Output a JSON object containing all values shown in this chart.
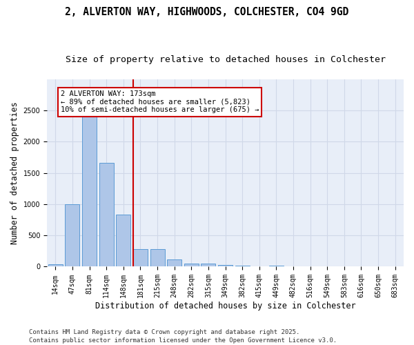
{
  "title_line1": "2, ALVERTON WAY, HIGHWOODS, COLCHESTER, CO4 9GD",
  "title_line2": "Size of property relative to detached houses in Colchester",
  "xlabel": "Distribution of detached houses by size in Colchester",
  "ylabel": "Number of detached properties",
  "bar_labels": [
    "14sqm",
    "47sqm",
    "81sqm",
    "114sqm",
    "148sqm",
    "181sqm",
    "215sqm",
    "248sqm",
    "282sqm",
    "315sqm",
    "349sqm",
    "382sqm",
    "415sqm",
    "449sqm",
    "482sqm",
    "516sqm",
    "549sqm",
    "583sqm",
    "616sqm",
    "650sqm",
    "683sqm"
  ],
  "bar_values": [
    40,
    1000,
    2480,
    1660,
    830,
    280,
    280,
    120,
    50,
    50,
    30,
    20,
    0,
    20,
    0,
    0,
    0,
    0,
    0,
    0,
    0
  ],
  "bar_color": "#aec6e8",
  "bar_edge_color": "#5b9bd5",
  "vline_color": "#cc0000",
  "annotation_text": "2 ALVERTON WAY: 173sqm\n← 89% of detached houses are smaller (5,823)\n10% of semi-detached houses are larger (675) →",
  "annotation_box_color": "#ffffff",
  "annotation_box_edge": "#cc0000",
  "ylim": [
    0,
    3000
  ],
  "yticks": [
    0,
    500,
    1000,
    1500,
    2000,
    2500
  ],
  "grid_color": "#d0d8e8",
  "background_color": "#e8eef8",
  "footer_line1": "Contains HM Land Registry data © Crown copyright and database right 2025.",
  "footer_line2": "Contains public sector information licensed under the Open Government Licence v3.0.",
  "title_fontsize": 10.5,
  "subtitle_fontsize": 9.5,
  "axis_label_fontsize": 8.5,
  "tick_fontsize": 7,
  "annotation_fontsize": 7.5,
  "footer_fontsize": 6.5
}
